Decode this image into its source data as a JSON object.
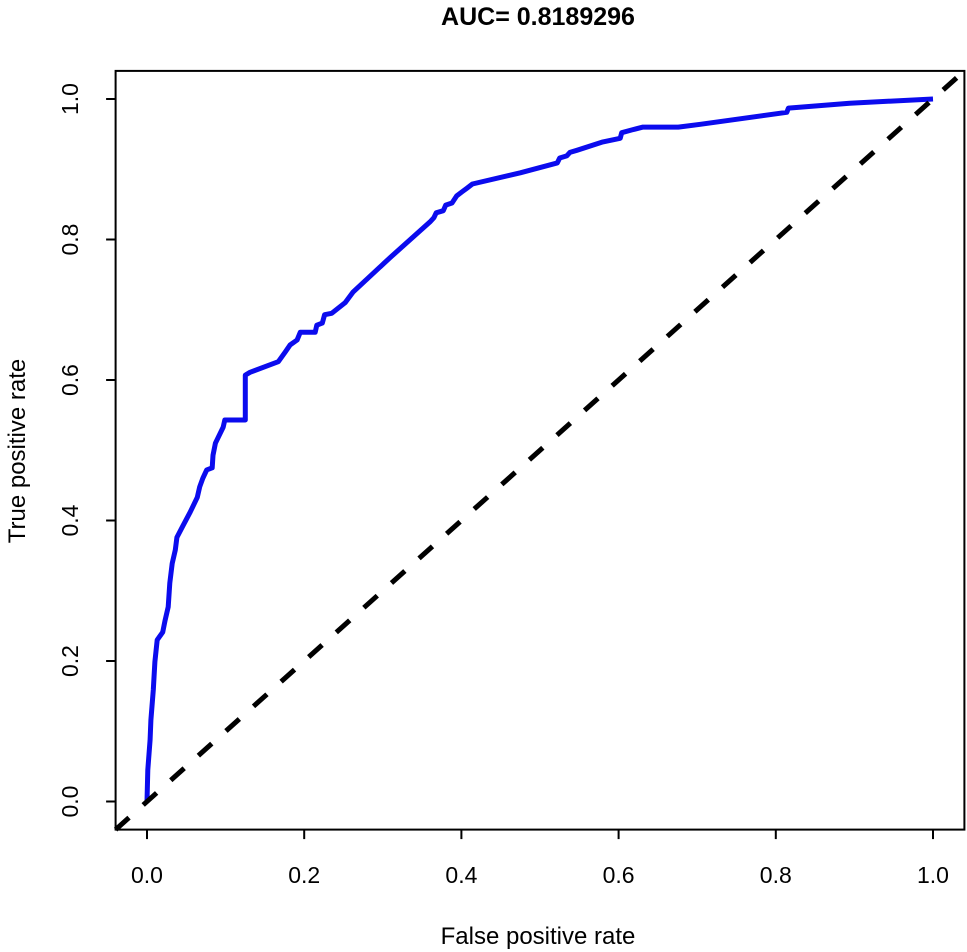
{
  "figure": {
    "background_color": "#FFFFFF",
    "foreground_color": "#000000"
  },
  "chart_data": {
    "type": "line",
    "title": "AUC= 0.8189296",
    "auc_value": 0.8189296,
    "xlabel": "False positive rate",
    "ylabel": "True positive rate",
    "xlim": [
      0.0,
      1.0
    ],
    "ylim": [
      0.0,
      1.0
    ],
    "grid": false,
    "legend_position": "none",
    "x_ticks": [
      0.0,
      0.2,
      0.4,
      0.6,
      0.8,
      1.0
    ],
    "y_ticks": [
      0.0,
      0.2,
      0.4,
      0.6,
      0.8,
      1.0
    ],
    "x_tick_labels": [
      "0.0",
      "0.2",
      "0.4",
      "0.6",
      "0.8",
      "1.0"
    ],
    "y_tick_labels": [
      "0.0",
      "0.2",
      "0.4",
      "0.6",
      "0.8",
      "1.0"
    ],
    "series": [
      {
        "name": "ROC curve",
        "color": "#0B0BEE",
        "style": "solid",
        "width": 5,
        "extend": 0,
        "points": [
          [
            0.0,
            0.0
          ],
          [
            0.001,
            0.045
          ],
          [
            0.004,
            0.088
          ],
          [
            0.005,
            0.116
          ],
          [
            0.008,
            0.159
          ],
          [
            0.01,
            0.199
          ],
          [
            0.013,
            0.23
          ],
          [
            0.02,
            0.241
          ],
          [
            0.023,
            0.258
          ],
          [
            0.027,
            0.277
          ],
          [
            0.029,
            0.311
          ],
          [
            0.032,
            0.339
          ],
          [
            0.036,
            0.358
          ],
          [
            0.038,
            0.376
          ],
          [
            0.045,
            0.391
          ],
          [
            0.055,
            0.412
          ],
          [
            0.064,
            0.433
          ],
          [
            0.067,
            0.448
          ],
          [
            0.071,
            0.46
          ],
          [
            0.076,
            0.472
          ],
          [
            0.083,
            0.475
          ],
          [
            0.084,
            0.493
          ],
          [
            0.087,
            0.51
          ],
          [
            0.097,
            0.533
          ],
          [
            0.099,
            0.543
          ],
          [
            0.125,
            0.543
          ],
          [
            0.125,
            0.607
          ],
          [
            0.131,
            0.611
          ],
          [
            0.167,
            0.626
          ],
          [
            0.176,
            0.64
          ],
          [
            0.182,
            0.65
          ],
          [
            0.191,
            0.657
          ],
          [
            0.195,
            0.668
          ],
          [
            0.214,
            0.668
          ],
          [
            0.216,
            0.678
          ],
          [
            0.223,
            0.681
          ],
          [
            0.226,
            0.693
          ],
          [
            0.235,
            0.695
          ],
          [
            0.252,
            0.71
          ],
          [
            0.262,
            0.725
          ],
          [
            0.309,
            0.774
          ],
          [
            0.36,
            0.825
          ],
          [
            0.365,
            0.831
          ],
          [
            0.368,
            0.838
          ],
          [
            0.377,
            0.841
          ],
          [
            0.38,
            0.849
          ],
          [
            0.388,
            0.852
          ],
          [
            0.394,
            0.862
          ],
          [
            0.401,
            0.868
          ],
          [
            0.407,
            0.873
          ],
          [
            0.414,
            0.879
          ],
          [
            0.475,
            0.895
          ],
          [
            0.522,
            0.909
          ],
          [
            0.525,
            0.916
          ],
          [
            0.534,
            0.919
          ],
          [
            0.538,
            0.924
          ],
          [
            0.547,
            0.927
          ],
          [
            0.58,
            0.939
          ],
          [
            0.602,
            0.944
          ],
          [
            0.604,
            0.952
          ],
          [
            0.617,
            0.956
          ],
          [
            0.631,
            0.96
          ],
          [
            0.676,
            0.96
          ],
          [
            0.704,
            0.964
          ],
          [
            0.814,
            0.981
          ],
          [
            0.816,
            0.987
          ],
          [
            0.894,
            0.994
          ],
          [
            1.0,
            1.0
          ]
        ]
      },
      {
        "name": "Chance diagonal",
        "color": "#000000",
        "style": "dashed",
        "width": 5,
        "extend": 0.04,
        "points": [
          [
            0.0,
            0.0
          ],
          [
            1.0,
            1.0
          ]
        ]
      }
    ]
  }
}
